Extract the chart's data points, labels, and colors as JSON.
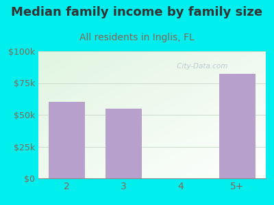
{
  "title": "Median family income by family size",
  "subtitle": "All residents in Inglis, FL",
  "categories": [
    "2",
    "3",
    "4",
    "5+"
  ],
  "values": [
    60000,
    55000,
    0,
    82000
  ],
  "bar_color": "#b8a0cc",
  "title_color": "#333333",
  "subtitle_color": "#886655",
  "tick_label_color": "#886655",
  "background_color": "#00eeee",
  "plot_bg_color_top_left": "#d8eed8",
  "plot_bg_color_bottom_right": "#f8fff8",
  "ylim": [
    0,
    100000
  ],
  "yticks": [
    0,
    25000,
    50000,
    75000,
    100000
  ],
  "ytick_labels": [
    "$0",
    "$25k",
    "$50k",
    "$75k",
    "$100k"
  ],
  "watermark": " City-Data.com",
  "title_fontsize": 13,
  "subtitle_fontsize": 10,
  "tick_fontsize": 9
}
